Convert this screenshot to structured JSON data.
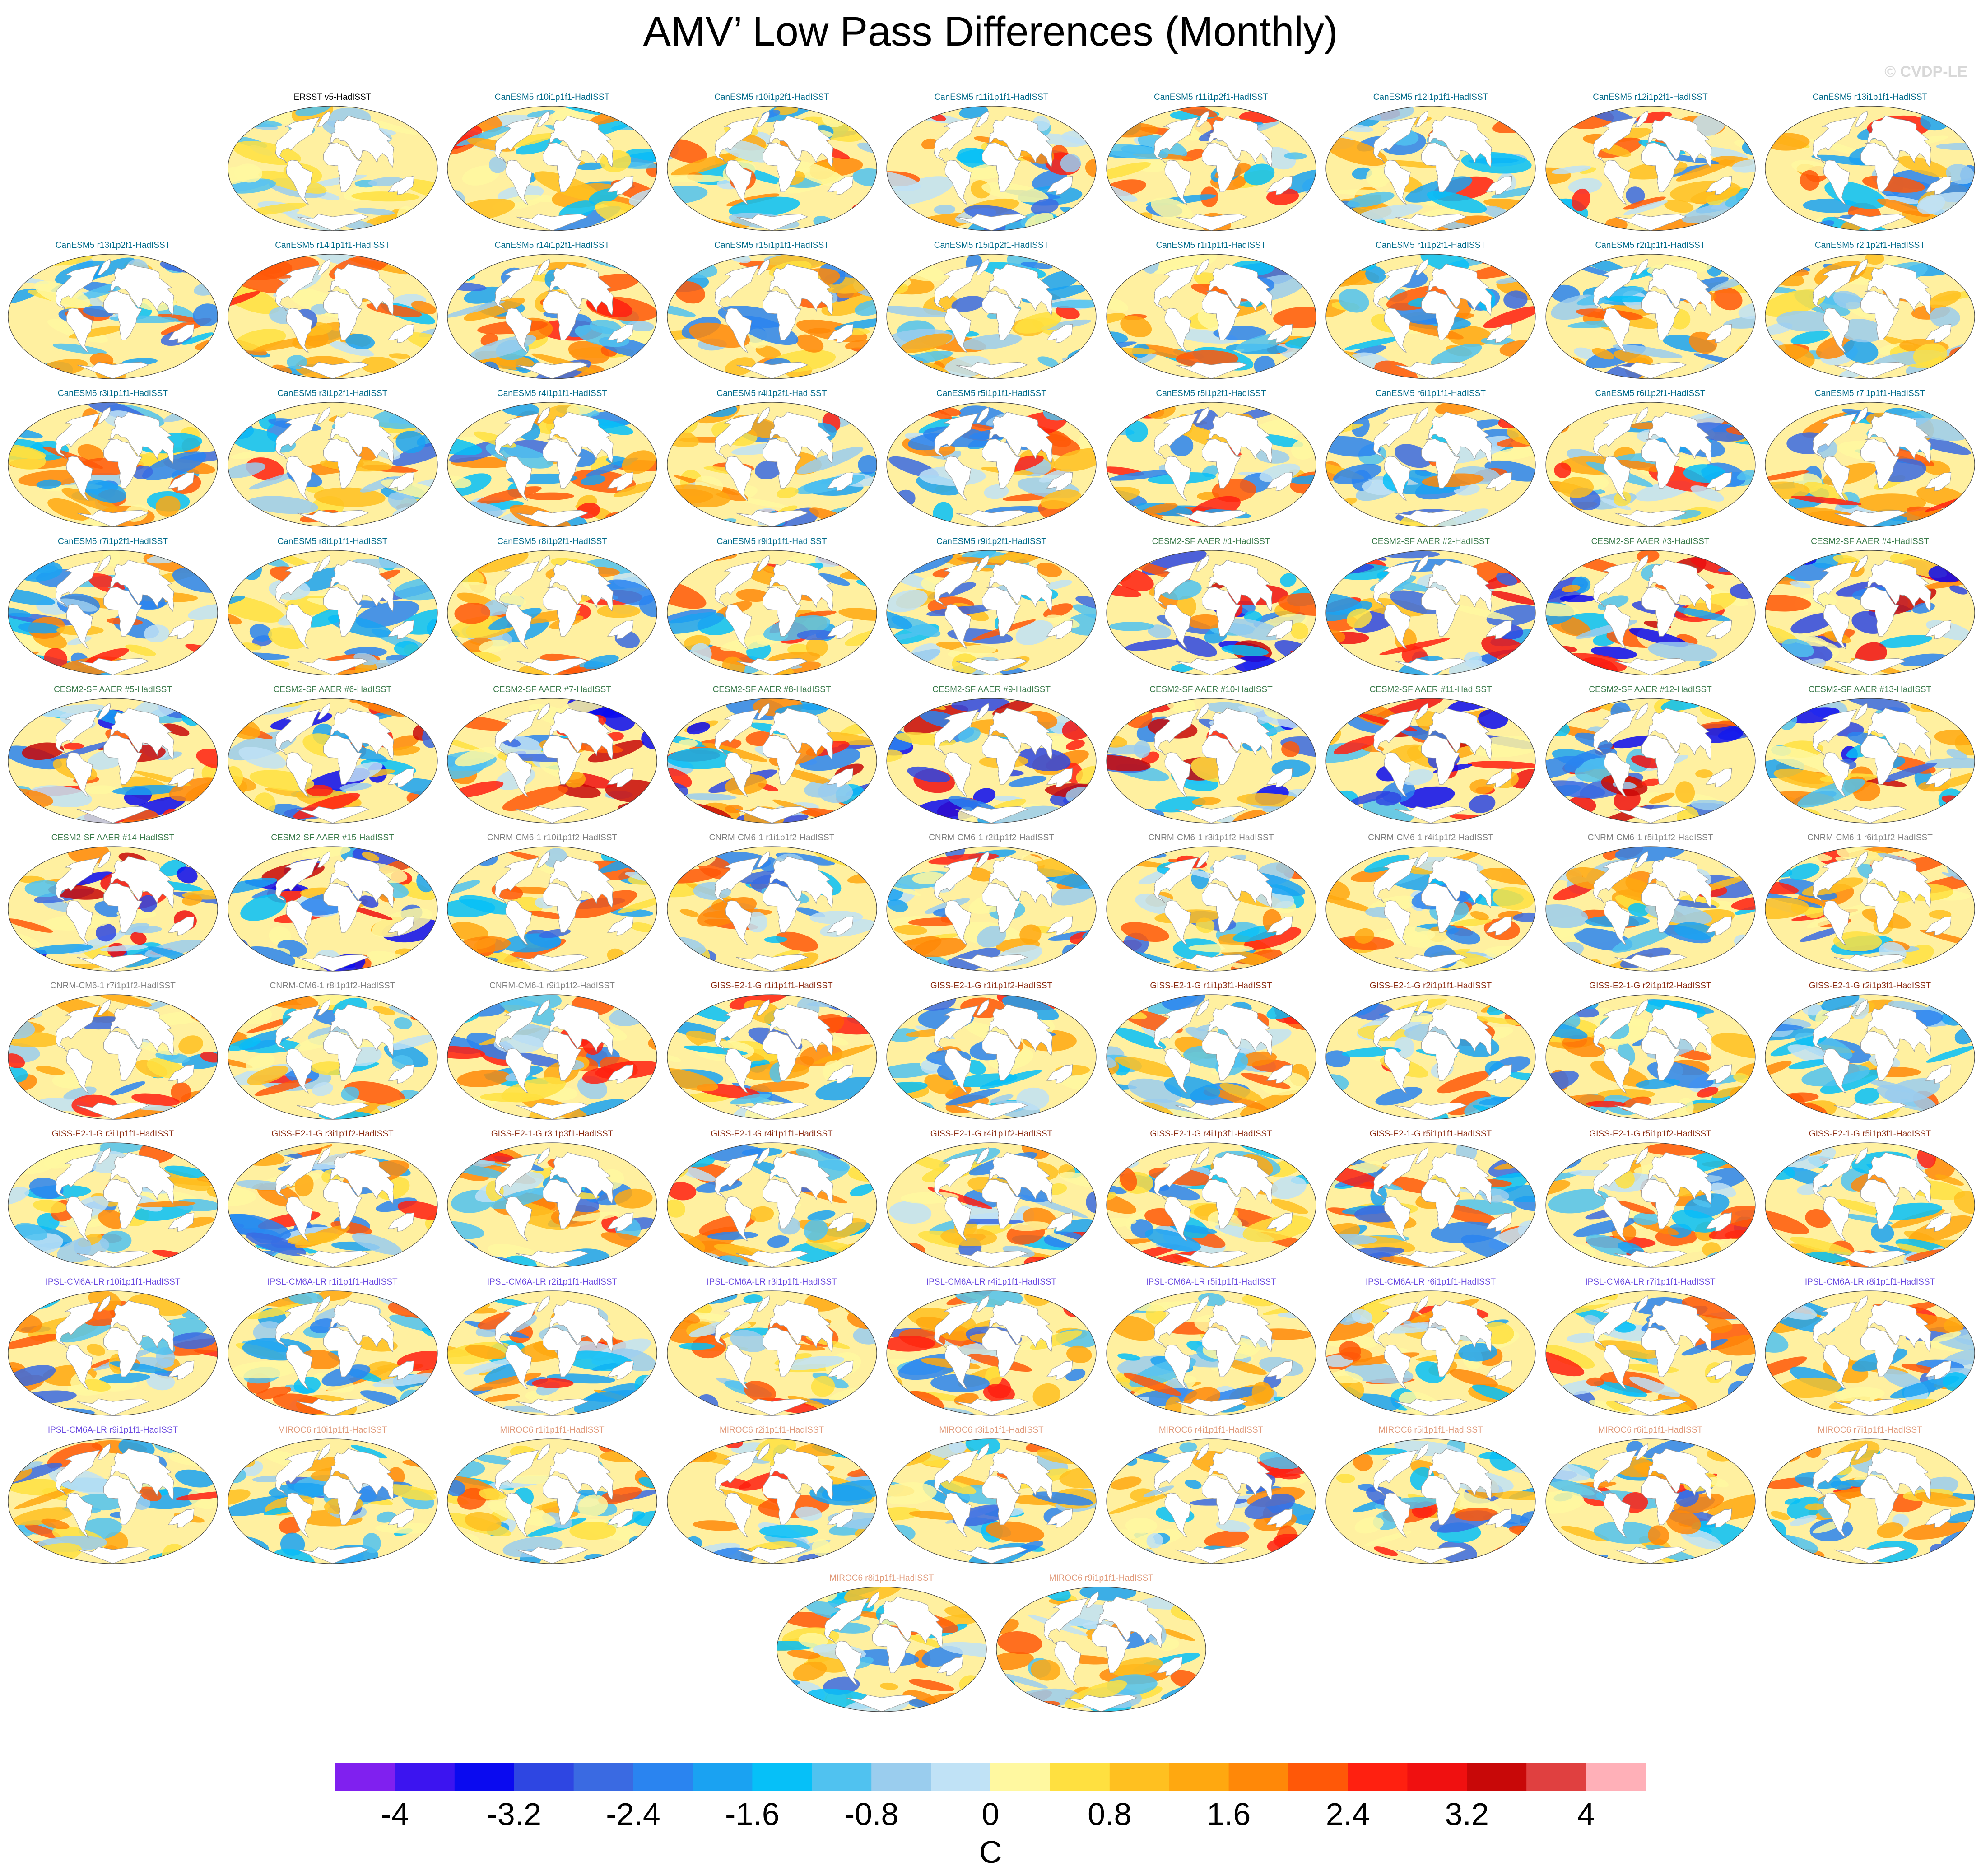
{
  "title": "AMV’ Low Pass Differences (Monthly)",
  "watermark": "© CVDP-LE",
  "chart_data": {
    "type": "heatmap",
    "description_kind": "small-multiple global SST difference maps (model minus observations)",
    "colorbar": {
      "units": "C",
      "min": -4.4,
      "max": 4.4,
      "step": 0.4,
      "tick_values": [
        -4,
        -3.2,
        -2.4,
        -1.6,
        -0.8,
        0,
        0.8,
        1.6,
        2.4,
        3.2,
        4
      ],
      "tick_labels": [
        "-4",
        "-3.2",
        "-2.4",
        "-1.6",
        "-0.8",
        "0",
        "0.8",
        "1.6",
        "2.4",
        "3.2",
        "4"
      ],
      "colors": [
        "#8020ef",
        "#3c14f0",
        "#0a0af0",
        "#2e46e2",
        "#3a6ae2",
        "#2a84f0",
        "#1aa2f2",
        "#06c0f8",
        "#50c2f0",
        "#9acdee",
        "#c0e2f6",
        "#fff8a0",
        "#ffe040",
        "#ffc020",
        "#ffa810",
        "#ff8808",
        "#ff5808",
        "#ff2010",
        "#f01010",
        "#c80808",
        "#e04040",
        "#ffb0b8"
      ]
    },
    "group_colors": {
      "ERSST": "#000000",
      "CanESM5": "#006a8a",
      "CESM2-SF AAER": "#3a7a4a",
      "CNRM-CM6-1": "#808080",
      "GISS-E2-1-G": "#8a2a10",
      "IPSL-CM6A-LR": "#6a4ae0",
      "MIROC6": "#e09a7a"
    },
    "panels": [
      {
        "label": "ERSST v5-HadISST",
        "group": "ERSST"
      },
      {
        "label": "CanESM5 r10i1p1f1-HadISST",
        "group": "CanESM5"
      },
      {
        "label": "CanESM5 r10i1p2f1-HadISST",
        "group": "CanESM5"
      },
      {
        "label": "CanESM5 r11i1p1f1-HadISST",
        "group": "CanESM5"
      },
      {
        "label": "CanESM5 r11i1p2f1-HadISST",
        "group": "CanESM5"
      },
      {
        "label": "CanESM5 r12i1p1f1-HadISST",
        "group": "CanESM5"
      },
      {
        "label": "CanESM5 r12i1p2f1-HadISST",
        "group": "CanESM5"
      },
      {
        "label": "CanESM5 r13i1p1f1-HadISST",
        "group": "CanESM5"
      },
      {
        "label": "CanESM5 r13i1p2f1-HadISST",
        "group": "CanESM5"
      },
      {
        "label": "CanESM5 r14i1p1f1-HadISST",
        "group": "CanESM5"
      },
      {
        "label": "CanESM5 r14i1p2f1-HadISST",
        "group": "CanESM5"
      },
      {
        "label": "CanESM5 r15i1p1f1-HadISST",
        "group": "CanESM5"
      },
      {
        "label": "CanESM5 r15i1p2f1-HadISST",
        "group": "CanESM5"
      },
      {
        "label": "CanESM5 r1i1p1f1-HadISST",
        "group": "CanESM5"
      },
      {
        "label": "CanESM5 r1i1p2f1-HadISST",
        "group": "CanESM5"
      },
      {
        "label": "CanESM5 r2i1p1f1-HadISST",
        "group": "CanESM5"
      },
      {
        "label": "CanESM5 r2i1p2f1-HadISST",
        "group": "CanESM5"
      },
      {
        "label": "CanESM5 r3i1p1f1-HadISST",
        "group": "CanESM5"
      },
      {
        "label": "CanESM5 r3i1p2f1-HadISST",
        "group": "CanESM5"
      },
      {
        "label": "CanESM5 r4i1p1f1-HadISST",
        "group": "CanESM5"
      },
      {
        "label": "CanESM5 r4i1p2f1-HadISST",
        "group": "CanESM5"
      },
      {
        "label": "CanESM5 r5i1p1f1-HadISST",
        "group": "CanESM5"
      },
      {
        "label": "CanESM5 r5i1p2f1-HadISST",
        "group": "CanESM5"
      },
      {
        "label": "CanESM5 r6i1p1f1-HadISST",
        "group": "CanESM5"
      },
      {
        "label": "CanESM5 r6i1p2f1-HadISST",
        "group": "CanESM5"
      },
      {
        "label": "CanESM5 r7i1p1f1-HadISST",
        "group": "CanESM5"
      },
      {
        "label": "CanESM5 r7i1p2f1-HadISST",
        "group": "CanESM5"
      },
      {
        "label": "CanESM5 r8i1p1f1-HadISST",
        "group": "CanESM5"
      },
      {
        "label": "CanESM5 r8i1p2f1-HadISST",
        "group": "CanESM5"
      },
      {
        "label": "CanESM5 r9i1p1f1-HadISST",
        "group": "CanESM5"
      },
      {
        "label": "CanESM5 r9i1p2f1-HadISST",
        "group": "CanESM5"
      },
      {
        "label": "CESM2-SF AAER #1-HadISST",
        "group": "CESM2-SF AAER"
      },
      {
        "label": "CESM2-SF AAER #2-HadISST",
        "group": "CESM2-SF AAER"
      },
      {
        "label": "CESM2-SF AAER #3-HadISST",
        "group": "CESM2-SF AAER"
      },
      {
        "label": "CESM2-SF AAER #4-HadISST",
        "group": "CESM2-SF AAER"
      },
      {
        "label": "CESM2-SF AAER #5-HadISST",
        "group": "CESM2-SF AAER"
      },
      {
        "label": "CESM2-SF AAER #6-HadISST",
        "group": "CESM2-SF AAER"
      },
      {
        "label": "CESM2-SF AAER #7-HadISST",
        "group": "CESM2-SF AAER"
      },
      {
        "label": "CESM2-SF AAER #8-HadISST",
        "group": "CESM2-SF AAER"
      },
      {
        "label": "CESM2-SF AAER #9-HadISST",
        "group": "CESM2-SF AAER"
      },
      {
        "label": "CESM2-SF AAER #10-HadISST",
        "group": "CESM2-SF AAER"
      },
      {
        "label": "CESM2-SF AAER #11-HadISST",
        "group": "CESM2-SF AAER"
      },
      {
        "label": "CESM2-SF AAER #12-HadISST",
        "group": "CESM2-SF AAER"
      },
      {
        "label": "CESM2-SF AAER #13-HadISST",
        "group": "CESM2-SF AAER"
      },
      {
        "label": "CESM2-SF AAER #14-HadISST",
        "group": "CESM2-SF AAER"
      },
      {
        "label": "CESM2-SF AAER #15-HadISST",
        "group": "CESM2-SF AAER"
      },
      {
        "label": "CNRM-CM6-1 r10i1p1f2-HadISST",
        "group": "CNRM-CM6-1"
      },
      {
        "label": "CNRM-CM6-1 r1i1p1f2-HadISST",
        "group": "CNRM-CM6-1"
      },
      {
        "label": "CNRM-CM6-1 r2i1p1f2-HadISST",
        "group": "CNRM-CM6-1"
      },
      {
        "label": "CNRM-CM6-1 r3i1p1f2-HadISST",
        "group": "CNRM-CM6-1"
      },
      {
        "label": "CNRM-CM6-1 r4i1p1f2-HadISST",
        "group": "CNRM-CM6-1"
      },
      {
        "label": "CNRM-CM6-1 r5i1p1f2-HadISST",
        "group": "CNRM-CM6-1"
      },
      {
        "label": "CNRM-CM6-1 r6i1p1f2-HadISST",
        "group": "CNRM-CM6-1"
      },
      {
        "label": "CNRM-CM6-1 r7i1p1f2-HadISST",
        "group": "CNRM-CM6-1"
      },
      {
        "label": "CNRM-CM6-1 r8i1p1f2-HadISST",
        "group": "CNRM-CM6-1"
      },
      {
        "label": "CNRM-CM6-1 r9i1p1f2-HadISST",
        "group": "CNRM-CM6-1"
      },
      {
        "label": "GISS-E2-1-G r1i1p1f1-HadISST",
        "group": "GISS-E2-1-G"
      },
      {
        "label": "GISS-E2-1-G r1i1p1f2-HadISST",
        "group": "GISS-E2-1-G"
      },
      {
        "label": "GISS-E2-1-G r1i1p3f1-HadISST",
        "group": "GISS-E2-1-G"
      },
      {
        "label": "GISS-E2-1-G r2i1p1f1-HadISST",
        "group": "GISS-E2-1-G"
      },
      {
        "label": "GISS-E2-1-G r2i1p1f2-HadISST",
        "group": "GISS-E2-1-G"
      },
      {
        "label": "GISS-E2-1-G r2i1p3f1-HadISST",
        "group": "GISS-E2-1-G"
      },
      {
        "label": "GISS-E2-1-G r3i1p1f1-HadISST",
        "group": "GISS-E2-1-G"
      },
      {
        "label": "GISS-E2-1-G r3i1p1f2-HadISST",
        "group": "GISS-E2-1-G"
      },
      {
        "label": "GISS-E2-1-G r3i1p3f1-HadISST",
        "group": "GISS-E2-1-G"
      },
      {
        "label": "GISS-E2-1-G r4i1p1f1-HadISST",
        "group": "GISS-E2-1-G"
      },
      {
        "label": "GISS-E2-1-G r4i1p1f2-HadISST",
        "group": "GISS-E2-1-G"
      },
      {
        "label": "GISS-E2-1-G r4i1p3f1-HadISST",
        "group": "GISS-E2-1-G"
      },
      {
        "label": "GISS-E2-1-G r5i1p1f1-HadISST",
        "group": "GISS-E2-1-G"
      },
      {
        "label": "GISS-E2-1-G r5i1p1f2-HadISST",
        "group": "GISS-E2-1-G"
      },
      {
        "label": "GISS-E2-1-G r5i1p3f1-HadISST",
        "group": "GISS-E2-1-G"
      },
      {
        "label": "IPSL-CM6A-LR r10i1p1f1-HadISST",
        "group": "IPSL-CM6A-LR"
      },
      {
        "label": "IPSL-CM6A-LR r1i1p1f1-HadISST",
        "group": "IPSL-CM6A-LR"
      },
      {
        "label": "IPSL-CM6A-LR r2i1p1f1-HadISST",
        "group": "IPSL-CM6A-LR"
      },
      {
        "label": "IPSL-CM6A-LR r3i1p1f1-HadISST",
        "group": "IPSL-CM6A-LR"
      },
      {
        "label": "IPSL-CM6A-LR r4i1p1f1-HadISST",
        "group": "IPSL-CM6A-LR"
      },
      {
        "label": "IPSL-CM6A-LR r5i1p1f1-HadISST",
        "group": "IPSL-CM6A-LR"
      },
      {
        "label": "IPSL-CM6A-LR r6i1p1f1-HadISST",
        "group": "IPSL-CM6A-LR"
      },
      {
        "label": "IPSL-CM6A-LR r7i1p1f1-HadISST",
        "group": "IPSL-CM6A-LR"
      },
      {
        "label": "IPSL-CM6A-LR r8i1p1f1-HadISST",
        "group": "IPSL-CM6A-LR"
      },
      {
        "label": "IPSL-CM6A-LR r9i1p1f1-HadISST",
        "group": "IPSL-CM6A-LR"
      },
      {
        "label": "MIROC6 r10i1p1f1-HadISST",
        "group": "MIROC6"
      },
      {
        "label": "MIROC6 r1i1p1f1-HadISST",
        "group": "MIROC6"
      },
      {
        "label": "MIROC6 r2i1p1f1-HadISST",
        "group": "MIROC6"
      },
      {
        "label": "MIROC6 r3i1p1f1-HadISST",
        "group": "MIROC6"
      },
      {
        "label": "MIROC6 r4i1p1f1-HadISST",
        "group": "MIROC6"
      },
      {
        "label": "MIROC6 r5i1p1f1-HadISST",
        "group": "MIROC6"
      },
      {
        "label": "MIROC6 r6i1p1f1-HadISST",
        "group": "MIROC6"
      },
      {
        "label": "MIROC6 r7i1p1f1-HadISST",
        "group": "MIROC6"
      },
      {
        "label": "MIROC6 r8i1p1f1-HadISST",
        "group": "MIROC6"
      },
      {
        "label": "MIROC6 r9i1p1f1-HadISST",
        "group": "MIROC6"
      }
    ]
  }
}
